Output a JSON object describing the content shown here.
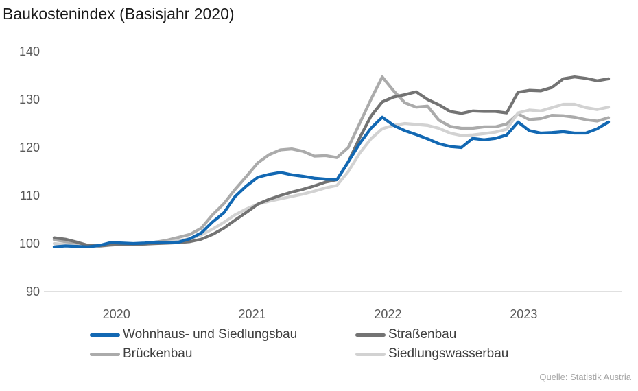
{
  "chart_data": {
    "type": "line",
    "title": "Baukostenindex (Basisjahr 2020)",
    "source": "Quelle: Statistik Austria",
    "x_unit": "month",
    "x_start": "2020-01",
    "x_end": "2024-02",
    "x_tick_labels": [
      "2020",
      "2021",
      "2022",
      "2023"
    ],
    "y_ticks": [
      90,
      100,
      110,
      120,
      130,
      140
    ],
    "ylim": [
      90,
      140
    ],
    "grid": "off",
    "legend_position": "bottom",
    "colors": {
      "axis": "#d6d6d6",
      "tick_text": "#595959",
      "title_text": "#1a1a1a",
      "legend_text": "#3f3f3f",
      "source_text": "#a6a6a6"
    },
    "draw_order": [
      2,
      3,
      1,
      0
    ],
    "series": [
      {
        "id": "wohnhaus",
        "name": "Wohnhaus- und Siedlungsbau",
        "color": "#1268b3",
        "values": [
          99.3,
          99.5,
          99.4,
          99.3,
          99.6,
          100.2,
          100.1,
          100.0,
          100.1,
          100.3,
          100.2,
          100.3,
          101.0,
          102.2,
          104.5,
          106.4,
          109.8,
          112.0,
          113.8,
          114.4,
          114.8,
          114.3,
          114.0,
          113.6,
          113.4,
          113.3,
          117.0,
          120.8,
          124.0,
          126.3,
          124.6,
          123.5,
          122.7,
          121.8,
          120.8,
          120.2,
          120.0,
          121.9,
          121.6,
          121.9,
          122.6,
          125.3,
          123.5,
          123.0,
          123.1,
          123.3,
          123.0,
          123.0,
          123.9,
          125.3
        ]
      },
      {
        "id": "strassenbau",
        "name": "Straßenbau",
        "color": "#737373",
        "values": [
          101.2,
          100.9,
          100.3,
          99.6,
          99.5,
          99.7,
          99.8,
          99.8,
          99.9,
          100.0,
          100.1,
          100.2,
          100.4,
          100.9,
          101.9,
          103.2,
          104.9,
          106.5,
          108.2,
          109.2,
          110.0,
          110.7,
          111.3,
          112.0,
          112.8,
          113.3,
          117.0,
          122.0,
          126.5,
          129.5,
          130.5,
          131.0,
          131.6,
          130.0,
          128.9,
          127.5,
          127.1,
          127.6,
          127.5,
          127.5,
          127.2,
          131.5,
          131.9,
          131.8,
          132.5,
          134.3,
          134.7,
          134.4,
          133.9,
          134.3
        ]
      },
      {
        "id": "brueckenbau",
        "name": "Brückenbau",
        "color": "#ababab",
        "values": [
          100.8,
          100.4,
          99.9,
          99.5,
          99.6,
          99.8,
          99.8,
          99.9,
          100.0,
          100.3,
          100.7,
          101.3,
          101.9,
          103.2,
          106.0,
          108.3,
          111.3,
          114.0,
          116.8,
          118.5,
          119.5,
          119.7,
          119.2,
          118.2,
          118.3,
          117.9,
          120.0,
          125.0,
          130.0,
          134.7,
          131.8,
          129.3,
          128.4,
          128.6,
          125.7,
          124.4,
          124.0,
          124.0,
          124.3,
          124.3,
          124.9,
          127.0,
          125.8,
          126.0,
          126.7,
          126.6,
          126.3,
          125.8,
          125.5,
          126.2
        ]
      },
      {
        "id": "siedlungswasserbau",
        "name": "Siedlungswasserbau",
        "color": "#d2d2d2",
        "values": [
          100.0,
          99.8,
          99.5,
          99.3,
          99.4,
          99.7,
          99.8,
          99.8,
          99.9,
          100.1,
          100.3,
          100.6,
          101.0,
          101.8,
          103.0,
          104.4,
          106.0,
          107.2,
          108.2,
          108.8,
          109.3,
          109.8,
          110.3,
          110.9,
          111.6,
          112.1,
          115.0,
          118.8,
          121.8,
          123.9,
          124.6,
          125.0,
          124.8,
          124.6,
          124.0,
          123.0,
          122.5,
          122.6,
          122.9,
          123.2,
          123.8,
          127.2,
          127.8,
          127.6,
          128.3,
          129.0,
          129.0,
          128.3,
          127.9,
          128.4
        ]
      }
    ]
  }
}
